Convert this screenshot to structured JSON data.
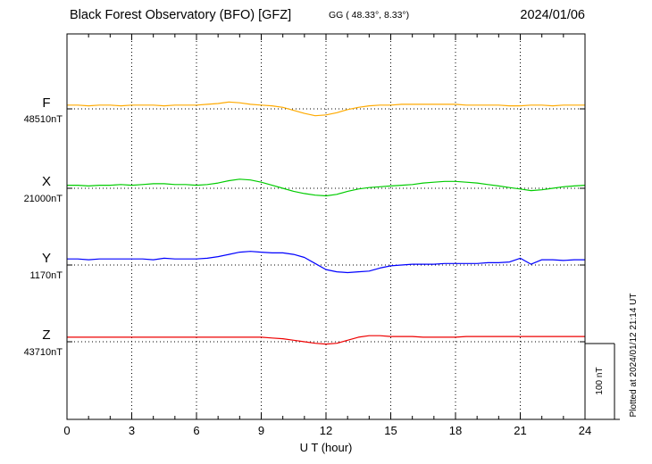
{
  "header": {
    "title": "Black Forest Observatory (BFO)  [GFZ]",
    "coords": "GG ( 48.33°,  8.33°)",
    "date": "2024/01/06"
  },
  "chart_data": {
    "type": "line",
    "title": "Black Forest Observatory (BFO)  [GFZ]",
    "subtitle": "GG ( 48.33°,  8.33°)",
    "date": "2024/01/06",
    "xlabel": "U T (hour)",
    "x_range": [
      0,
      24
    ],
    "x_ticks": [
      0,
      3,
      6,
      9,
      12,
      15,
      18,
      21,
      24
    ],
    "x_step_hours": 0.5,
    "grid": "dotted vertical lines every 3 hours; dotted horizontal baseline per trace",
    "scale_bar_label": "100 nT",
    "scale_bar_nT": 100,
    "plotted_at": "Plotted at 2024/01/12 21:14 UT",
    "series": [
      {
        "name": "F",
        "baseline_label": "48510nT",
        "baseline_nT": 48510,
        "color": "#ffaa00",
        "offsets_nT": [
          5,
          5,
          4,
          5,
          5,
          4,
          5,
          5,
          5,
          4,
          5,
          5,
          5,
          6,
          7,
          9,
          8,
          6,
          5,
          4,
          2,
          -2,
          -6,
          -9,
          -8,
          -5,
          -1,
          2,
          4,
          5,
          5,
          6,
          6,
          6,
          6,
          6,
          6,
          5,
          5,
          5,
          5,
          4,
          4,
          5,
          5,
          4,
          5,
          5,
          5
        ]
      },
      {
        "name": "X",
        "baseline_label": "21000nT",
        "baseline_nT": 21000,
        "color": "#00cc00",
        "offsets_nT": [
          4,
          4,
          3,
          4,
          4,
          5,
          4,
          5,
          6,
          6,
          5,
          5,
          4,
          5,
          7,
          10,
          12,
          11,
          8,
          4,
          0,
          -4,
          -7,
          -9,
          -10,
          -8,
          -4,
          -1,
          1,
          2,
          3,
          4,
          5,
          7,
          8,
          9,
          9,
          8,
          7,
          5,
          3,
          1,
          -1,
          -3,
          -2,
          0,
          2,
          3,
          4
        ]
      },
      {
        "name": "Y",
        "baseline_label": "1170nT",
        "baseline_nT": 1170,
        "color": "#0000ff",
        "offsets_nT": [
          8,
          8,
          7,
          8,
          8,
          8,
          8,
          8,
          7,
          9,
          8,
          8,
          8,
          9,
          11,
          14,
          17,
          18,
          17,
          16,
          16,
          14,
          10,
          2,
          -6,
          -9,
          -10,
          -9,
          -8,
          -4,
          -1,
          0,
          1,
          1,
          1,
          2,
          2,
          2,
          2,
          3,
          3,
          4,
          9,
          1,
          7,
          7,
          6,
          7,
          7
        ]
      },
      {
        "name": "Z",
        "baseline_label": "43710nT",
        "baseline_nT": 43710,
        "color": "#ee0000",
        "offsets_nT": [
          6,
          6,
          6,
          6,
          6,
          6,
          6,
          6,
          6,
          6,
          6,
          6,
          6,
          6,
          6,
          6,
          6,
          6,
          6,
          5,
          4,
          2,
          0,
          -2,
          -3,
          -2,
          2,
          6,
          8,
          8,
          7,
          7,
          7,
          6,
          6,
          6,
          6,
          7,
          7,
          7,
          7,
          7,
          7,
          7,
          7,
          7,
          7,
          7,
          7
        ]
      }
    ]
  }
}
